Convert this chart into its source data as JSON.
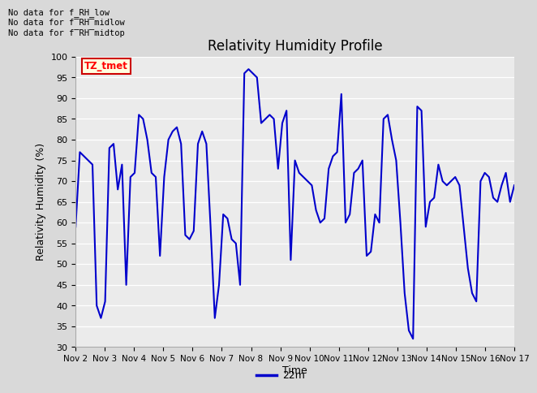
{
  "title": "Relativity Humidity Profile",
  "xlabel": "Time",
  "ylabel": "Relativity Humidity (%)",
  "ylim": [
    30,
    100
  ],
  "yticks": [
    30,
    35,
    40,
    45,
    50,
    55,
    60,
    65,
    70,
    75,
    80,
    85,
    90,
    95,
    100
  ],
  "line_color": "#0000cc",
  "line_width": 1.5,
  "legend_label": "22m",
  "legend_color": "#0000cc",
  "annotations": [
    "No data for f_RH_low",
    "No data for f̅RH̅midlow",
    "No data for f̅RH̅midtop"
  ],
  "tz_label": "TZ_tmet",
  "bg_color": "#d9d9d9",
  "plot_bg_color": "#ebebeb",
  "x_tick_labels": [
    "Nov 2",
    "Nov 3",
    "Nov 4",
    "Nov 5",
    "Nov 6",
    "Nov 7",
    "Nov 8",
    "Nov 9",
    "Nov 10",
    "Nov 11",
    "Nov 12",
    "Nov 13",
    "Nov 14",
    "Nov 15",
    "Nov 16",
    "Nov 17"
  ],
  "rh_values": [
    59,
    77,
    76,
    75,
    74,
    40,
    37,
    41,
    78,
    79,
    68,
    74,
    45,
    71,
    72,
    86,
    85,
    80,
    72,
    71,
    52,
    71,
    80,
    82,
    83,
    79,
    57,
    56,
    58,
    79,
    82,
    79,
    59,
    37,
    45,
    62,
    61,
    56,
    55,
    45,
    96,
    97,
    96,
    95,
    84,
    85,
    86,
    85,
    73,
    84,
    87,
    51,
    75,
    72,
    71,
    70,
    69,
    63,
    60,
    61,
    73,
    76,
    77,
    91,
    60,
    62,
    72,
    73,
    75,
    52,
    53,
    62,
    60,
    85,
    86,
    80,
    75,
    60,
    43,
    34,
    32,
    88,
    87,
    59,
    65,
    66,
    74,
    70,
    69,
    70,
    71,
    69,
    59,
    49,
    43,
    41,
    70,
    72,
    71,
    66,
    65,
    69,
    72,
    65,
    69
  ]
}
